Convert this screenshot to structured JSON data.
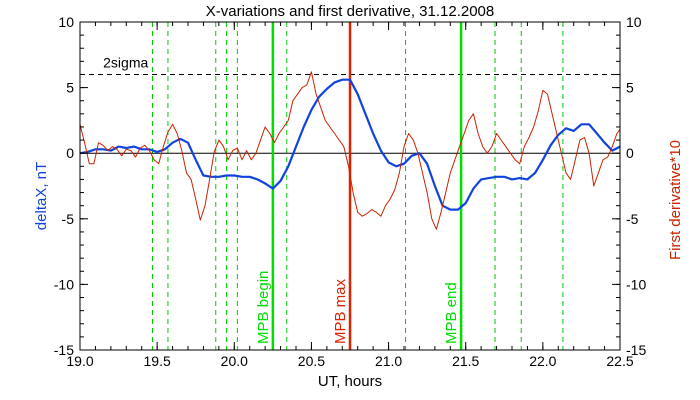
{
  "chart_data": {
    "type": "line",
    "title": "X-variations and first derivative, 31.12.2008",
    "xlabel": "UT, hours",
    "ylabel": "deltaX, nT",
    "y2label": "First derivative*10",
    "xlim": [
      19.0,
      22.5
    ],
    "ylim": [
      -15,
      10
    ],
    "y2lim": [
      -15,
      10
    ],
    "x_ticks": [
      "19.0",
      "19.5",
      "20.0",
      "20.5",
      "21.0",
      "21.5",
      "22.0",
      "22.5"
    ],
    "x_tick_values": [
      19.0,
      19.5,
      20.0,
      20.5,
      21.0,
      21.5,
      22.0,
      22.5
    ],
    "y_ticks": [
      "10",
      "5",
      "0",
      "-5",
      "-10",
      "-15"
    ],
    "y_tick_values": [
      10,
      5,
      0,
      -5,
      -10,
      -15
    ],
    "grid": false,
    "threshold": {
      "label": "2sigma",
      "value": 6.0
    },
    "zero_line": 0,
    "markers": [
      {
        "label": "MPB begin",
        "x": 20.25,
        "color": "#00dd00"
      },
      {
        "label": "MPB max",
        "x": 20.75,
        "color": "#dd2200"
      },
      {
        "label": "MPB end",
        "x": 21.47,
        "color": "#00dd00"
      }
    ],
    "dashed_markers_x": [
      19.47,
      19.57,
      19.88,
      19.95,
      20.02,
      20.34,
      21.11,
      21.69,
      21.86,
      22.13
    ],
    "dashed_marker_color": "#00cc00",
    "series": [
      {
        "axis": "left",
        "color": "#1144dd",
        "x": [
          19.0,
          19.05,
          19.1,
          19.15,
          19.2,
          19.25,
          19.3,
          19.35,
          19.4,
          19.45,
          19.5,
          19.55,
          19.6,
          19.65,
          19.7,
          19.75,
          19.8,
          19.85,
          19.9,
          19.95,
          20.0,
          20.05,
          20.1,
          20.15,
          20.2,
          20.25,
          20.3,
          20.35,
          20.4,
          20.45,
          20.5,
          20.55,
          20.6,
          20.65,
          20.7,
          20.75,
          20.8,
          20.85,
          20.9,
          20.95,
          21.0,
          21.05,
          21.1,
          21.15,
          21.2,
          21.25,
          21.3,
          21.35,
          21.4,
          21.45,
          21.5,
          21.55,
          21.6,
          21.65,
          21.7,
          21.75,
          21.8,
          21.85,
          21.9,
          21.95,
          22.0,
          22.05,
          22.1,
          22.15,
          22.2,
          22.25,
          22.3,
          22.35,
          22.4,
          22.45,
          22.5
        ],
        "y": [
          0.0,
          0.1,
          0.3,
          0.3,
          0.2,
          0.5,
          0.4,
          0.5,
          0.3,
          0.3,
          0.1,
          0.3,
          0.8,
          1.1,
          0.8,
          -0.5,
          -1.7,
          -1.8,
          -1.8,
          -1.7,
          -1.7,
          -1.8,
          -1.8,
          -2.0,
          -2.3,
          -2.7,
          -2.1,
          -1.0,
          0.5,
          2.0,
          3.3,
          4.3,
          4.9,
          5.4,
          5.6,
          5.6,
          4.5,
          3.0,
          1.5,
          0.2,
          -0.7,
          -1.0,
          -0.8,
          -0.2,
          0.0,
          -0.8,
          -2.5,
          -4.0,
          -4.3,
          -4.3,
          -3.8,
          -2.7,
          -2.0,
          -1.9,
          -1.8,
          -1.8,
          -2.0,
          -1.9,
          -2.0,
          -1.5,
          -0.5,
          0.6,
          1.4,
          1.9,
          1.7,
          2.2,
          2.2,
          1.5,
          0.8,
          0.2,
          0.5
        ]
      },
      {
        "axis": "right",
        "color": "#cc2200",
        "x": [
          19.0,
          19.03,
          19.06,
          19.09,
          19.12,
          19.15,
          19.18,
          19.21,
          19.24,
          19.27,
          19.3,
          19.33,
          19.36,
          19.39,
          19.42,
          19.45,
          19.48,
          19.51,
          19.54,
          19.57,
          19.6,
          19.63,
          19.66,
          19.69,
          19.72,
          19.75,
          19.78,
          19.81,
          19.84,
          19.87,
          19.9,
          19.93,
          19.96,
          19.99,
          20.02,
          20.05,
          20.08,
          20.11,
          20.14,
          20.17,
          20.2,
          20.23,
          20.26,
          20.29,
          20.32,
          20.35,
          20.38,
          20.41,
          20.44,
          20.47,
          20.5,
          20.53,
          20.56,
          20.59,
          20.62,
          20.65,
          20.68,
          20.71,
          20.74,
          20.77,
          20.8,
          20.83,
          20.86,
          20.89,
          20.92,
          20.95,
          20.98,
          21.01,
          21.04,
          21.07,
          21.1,
          21.13,
          21.16,
          21.19,
          21.22,
          21.25,
          21.28,
          21.31,
          21.34,
          21.37,
          21.4,
          21.43,
          21.46,
          21.49,
          21.52,
          21.55,
          21.58,
          21.61,
          21.64,
          21.67,
          21.7,
          21.73,
          21.76,
          21.79,
          21.82,
          21.85,
          21.88,
          21.91,
          21.94,
          21.97,
          22.0,
          22.03,
          22.06,
          22.09,
          22.12,
          22.15,
          22.18,
          22.21,
          22.24,
          22.27,
          22.3,
          22.33,
          22.36,
          22.39,
          22.42,
          22.45,
          22.48,
          22.5
        ],
        "y": [
          2.2,
          0.8,
          -0.8,
          -0.8,
          0.8,
          0.6,
          0.2,
          0.5,
          0.3,
          -0.2,
          0.3,
          0.2,
          -0.3,
          0.4,
          0.6,
          0.2,
          -0.5,
          -0.8,
          0.5,
          1.6,
          2.2,
          1.5,
          0.2,
          -1.5,
          -2.0,
          -3.5,
          -5.1,
          -4.0,
          -2.0,
          0.1,
          1.0,
          0.5,
          -0.5,
          0.2,
          0.4,
          -0.5,
          0.2,
          -0.5,
          0.0,
          1.0,
          2.0,
          1.5,
          0.8,
          1.5,
          2.0,
          2.5,
          4.0,
          4.5,
          5.0,
          5.2,
          6.2,
          4.5,
          3.5,
          2.5,
          2.0,
          1.5,
          1.0,
          0.5,
          -1.0,
          -3.0,
          -4.5,
          -4.8,
          -4.6,
          -4.3,
          -4.5,
          -4.8,
          -4.0,
          -3.5,
          -2.8,
          -1.5,
          0.5,
          1.5,
          1.0,
          0.0,
          -1.5,
          -3.0,
          -5.0,
          -5.8,
          -4.5,
          -3.0,
          -1.5,
          -0.5,
          0.5,
          1.5,
          2.5,
          3.0,
          1.5,
          0.5,
          0.0,
          0.5,
          1.5,
          1.0,
          0.5,
          0.0,
          -0.5,
          -0.8,
          0.5,
          1.2,
          2.0,
          3.2,
          4.8,
          4.5,
          3.0,
          1.5,
          0.0,
          -1.5,
          -2.0,
          -0.5,
          1.0,
          1.2,
          0.0,
          -2.5,
          -1.5,
          -0.5,
          -0.3,
          0.5,
          1.5,
          1.8
        ]
      }
    ]
  }
}
